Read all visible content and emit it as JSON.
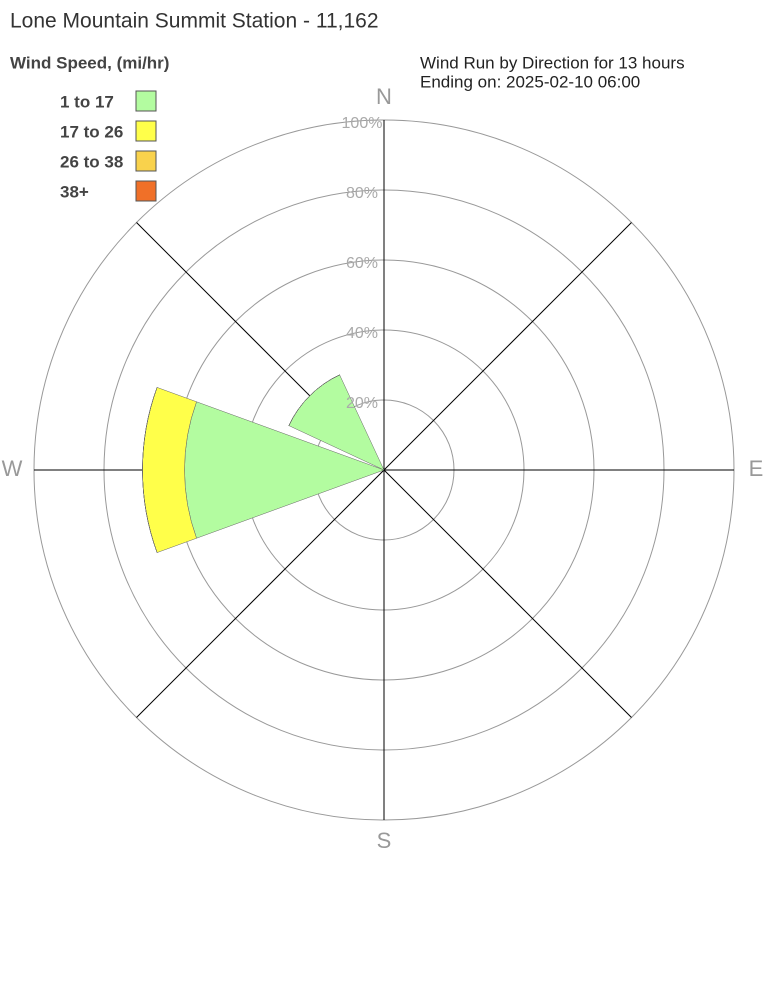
{
  "chart_data": {
    "type": "windrose",
    "title": "Lone Mountain Summit Station - 11,162",
    "legend_title": "Wind Speed, (mi/hr)",
    "annotations": [
      "Wind Run by Direction for 13 hours",
      "Ending on: 2025-02-10 06:00"
    ],
    "compass": [
      {
        "value": 0,
        "label": "N"
      },
      {
        "value": 90,
        "label": "E"
      },
      {
        "value": 180,
        "label": "S"
      },
      {
        "value": 270,
        "label": "W"
      }
    ],
    "x": [
      0,
      45,
      90,
      135,
      180,
      225,
      270,
      315
    ],
    "series": [
      {
        "name": "1 to 17",
        "color": "#b3fca0",
        "values": [
          0,
          0,
          0,
          0,
          0,
          0,
          57,
          30
        ]
      },
      {
        "name": "17 to 26",
        "color": "#ffff4a",
        "values": [
          0,
          0,
          0,
          0,
          0,
          0,
          12,
          0
        ]
      },
      {
        "name": "26 to 38",
        "color": "#f9d24c",
        "values": [
          0,
          0,
          0,
          0,
          0,
          0,
          0,
          0
        ]
      },
      {
        "name": "38+",
        "color": "#f07028",
        "values": [
          0,
          0,
          0,
          0,
          0,
          0,
          0,
          0
        ]
      }
    ],
    "ylim": [
      0,
      100
    ],
    "yticks": [
      {
        "value": 20,
        "label": "20%"
      },
      {
        "value": 40,
        "label": "40%"
      },
      {
        "value": 60,
        "label": "60%"
      },
      {
        "value": 80,
        "label": "80%"
      },
      {
        "value": 100,
        "label": "100%"
      }
    ],
    "grid": true
  }
}
